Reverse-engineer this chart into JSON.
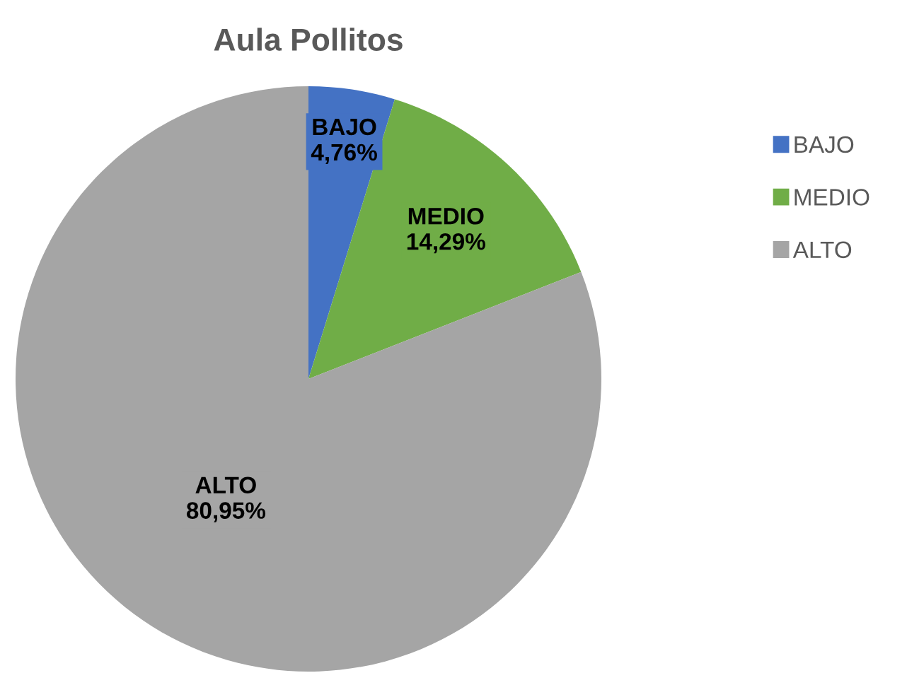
{
  "chart_data": {
    "type": "pie",
    "title": "Aula Pollitos",
    "categories": [
      "BAJO",
      "MEDIO",
      "ALTO"
    ],
    "values": [
      4.76,
      14.29,
      80.95
    ],
    "colors": [
      "#4472c4",
      "#70ad47",
      "#a5a5a5"
    ],
    "value_labels": [
      "4,76%",
      "14,29%",
      "80,95%"
    ],
    "legend": "right"
  }
}
